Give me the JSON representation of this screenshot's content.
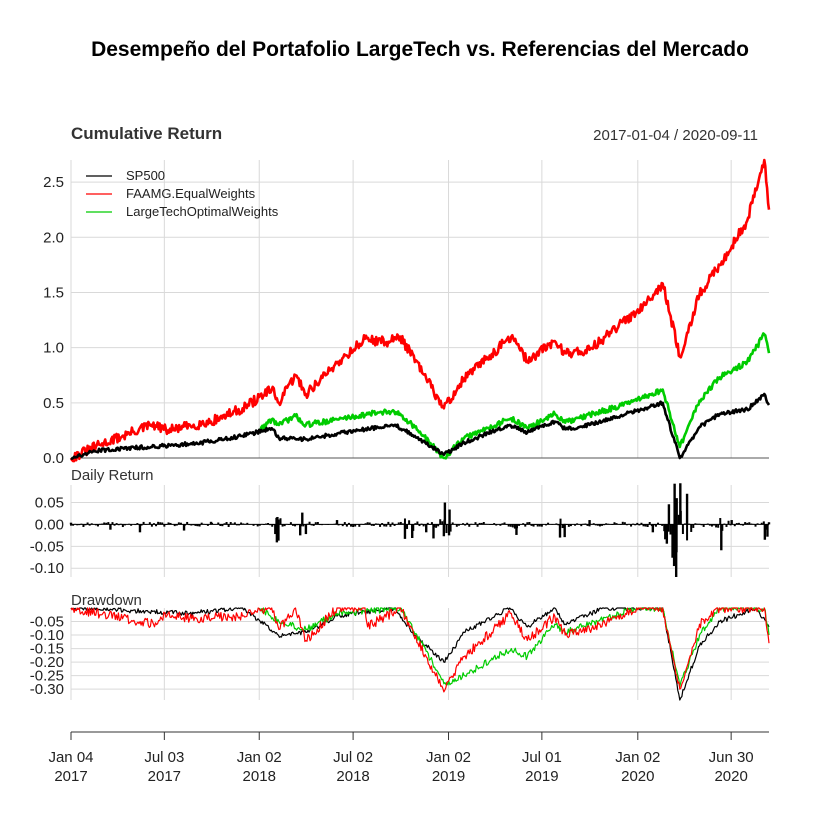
{
  "chart_data": {
    "type": "line",
    "title": "Desempeño del Portafolio LargeTech vs. Referencias del Mercado",
    "date_range": "2017-01-04 / 2020-09-11",
    "colors": {
      "SP500": "#000000",
      "FAAMG.EqualWeights": "#ff0000",
      "LargeTechOptimalWeights": "#00cc00"
    },
    "x_axis": {
      "tick_labels": [
        {
          "date": "2017-01-04",
          "line1": "Jan 04",
          "line2": "2017"
        },
        {
          "date": "2017-07-03",
          "line1": "Jul 03",
          "line2": "2017"
        },
        {
          "date": "2018-01-02",
          "line1": "Jan 02",
          "line2": "2018"
        },
        {
          "date": "2018-07-02",
          "line1": "Jul 02",
          "line2": "2018"
        },
        {
          "date": "2019-01-02",
          "line1": "Jan 02",
          "line2": "2019"
        },
        {
          "date": "2019-07-01",
          "line1": "Jul 01",
          "line2": "2019"
        },
        {
          "date": "2020-01-02",
          "line1": "Jan 02",
          "line2": "2020"
        },
        {
          "date": "2020-06-30",
          "line1": "Jun 30",
          "line2": "2020"
        }
      ],
      "range": [
        "2017-01-04",
        "2020-09-11"
      ]
    },
    "panels": [
      {
        "title": "Cumulative Return",
        "ylim": [
          0,
          2.7
        ],
        "yticks": [
          "0.0",
          "0.5",
          "1.0",
          "1.5",
          "2.0",
          "2.5"
        ],
        "legend_position": "top-left",
        "series": [
          {
            "name": "SP500",
            "points": [
              [
                "2017-01-04",
                0.0
              ],
              [
                "2017-03-01",
                0.07
              ],
              [
                "2017-06-01",
                0.1
              ],
              [
                "2017-09-01",
                0.13
              ],
              [
                "2017-12-01",
                0.2
              ],
              [
                "2018-01-26",
                0.27
              ],
              [
                "2018-02-09",
                0.18
              ],
              [
                "2018-04-02",
                0.17
              ],
              [
                "2018-06-01",
                0.22
              ],
              [
                "2018-09-20",
                0.3
              ],
              [
                "2018-10-29",
                0.2
              ],
              [
                "2018-12-24",
                0.03
              ],
              [
                "2019-02-01",
                0.14
              ],
              [
                "2019-04-30",
                0.3
              ],
              [
                "2019-06-03",
                0.23
              ],
              [
                "2019-07-26",
                0.33
              ],
              [
                "2019-08-15",
                0.26
              ],
              [
                "2019-10-01",
                0.3
              ],
              [
                "2019-12-31",
                0.43
              ],
              [
                "2020-02-19",
                0.5
              ],
              [
                "2020-03-23",
                0.0
              ],
              [
                "2020-04-30",
                0.28
              ],
              [
                "2020-06-08",
                0.4
              ],
              [
                "2020-07-31",
                0.44
              ],
              [
                "2020-09-02",
                0.58
              ],
              [
                "2020-09-11",
                0.48
              ]
            ]
          },
          {
            "name": "FAAMG.EqualWeights",
            "points": [
              [
                "2017-01-04",
                0.0
              ],
              [
                "2017-03-01",
                0.12
              ],
              [
                "2017-06-08",
                0.3
              ],
              [
                "2017-07-10",
                0.25
              ],
              [
                "2017-10-01",
                0.33
              ],
              [
                "2017-12-01",
                0.45
              ],
              [
                "2018-01-26",
                0.62
              ],
              [
                "2018-02-09",
                0.5
              ],
              [
                "2018-03-13",
                0.75
              ],
              [
                "2018-04-02",
                0.58
              ],
              [
                "2018-06-01",
                0.86
              ],
              [
                "2018-07-25",
                1.08
              ],
              [
                "2018-09-04",
                1.05
              ],
              [
                "2018-10-01",
                1.1
              ],
              [
                "2018-11-20",
                0.72
              ],
              [
                "2018-12-24",
                0.45
              ],
              [
                "2019-02-01",
                0.72
              ],
              [
                "2019-05-03",
                1.1
              ],
              [
                "2019-06-03",
                0.88
              ],
              [
                "2019-07-26",
                1.06
              ],
              [
                "2019-08-15",
                0.95
              ],
              [
                "2019-10-01",
                0.98
              ],
              [
                "2019-12-31",
                1.33
              ],
              [
                "2020-02-19",
                1.58
              ],
              [
                "2020-03-23",
                0.92
              ],
              [
                "2020-04-30",
                1.48
              ],
              [
                "2020-06-08",
                1.75
              ],
              [
                "2020-07-31",
                2.15
              ],
              [
                "2020-09-02",
                2.7
              ],
              [
                "2020-09-11",
                2.25
              ]
            ]
          },
          {
            "name": "LargeTechOptimalWeights",
            "points": [
              [
                "2018-01-02",
                0.25
              ],
              [
                "2018-01-26",
                0.35
              ],
              [
                "2018-02-09",
                0.3
              ],
              [
                "2018-03-13",
                0.38
              ],
              [
                "2018-04-02",
                0.3
              ],
              [
                "2018-06-01",
                0.35
              ],
              [
                "2018-08-30",
                0.42
              ],
              [
                "2018-10-01",
                0.4
              ],
              [
                "2018-10-29",
                0.28
              ],
              [
                "2018-12-24",
                0.0
              ],
              [
                "2019-02-01",
                0.18
              ],
              [
                "2019-05-03",
                0.36
              ],
              [
                "2019-06-03",
                0.27
              ],
              [
                "2019-07-26",
                0.4
              ],
              [
                "2019-08-15",
                0.32
              ],
              [
                "2019-12-31",
                0.52
              ],
              [
                "2020-02-19",
                0.62
              ],
              [
                "2020-03-23",
                0.1
              ],
              [
                "2020-04-30",
                0.52
              ],
              [
                "2020-06-08",
                0.73
              ],
              [
                "2020-07-31",
                0.87
              ],
              [
                "2020-09-02",
                1.12
              ],
              [
                "2020-09-11",
                0.95
              ]
            ]
          }
        ]
      },
      {
        "title": "Daily Return",
        "ylim": [
          -0.12,
          0.09
        ],
        "yticks": [
          "0.05",
          "0.00",
          "-0.05",
          "-0.10"
        ],
        "series_name": "SP500",
        "points": [
          [
            "2017-01-04",
            0.004
          ],
          [
            "2017-03-21",
            -0.012
          ],
          [
            "2017-05-17",
            -0.018
          ],
          [
            "2017-08-10",
            -0.014
          ],
          [
            "2017-10-01",
            0.006
          ],
          [
            "2018-02-02",
            -0.022
          ],
          [
            "2018-02-05",
            -0.041
          ],
          [
            "2018-02-06",
            0.017
          ],
          [
            "2018-02-08",
            -0.037
          ],
          [
            "2018-03-22",
            -0.025
          ],
          [
            "2018-03-26",
            0.027
          ],
          [
            "2018-04-02",
            -0.022
          ],
          [
            "2018-06-01",
            0.01
          ],
          [
            "2018-10-10",
            -0.033
          ],
          [
            "2018-10-24",
            -0.031
          ],
          [
            "2018-11-20",
            -0.018
          ],
          [
            "2018-12-04",
            -0.032
          ],
          [
            "2018-12-24",
            -0.027
          ],
          [
            "2018-12-26",
            0.05
          ],
          [
            "2019-01-03",
            -0.025
          ],
          [
            "2019-01-04",
            0.034
          ],
          [
            "2019-05-13",
            -0.024
          ],
          [
            "2019-08-05",
            -0.03
          ],
          [
            "2019-08-14",
            -0.029
          ],
          [
            "2019-10-01",
            0.01
          ],
          [
            "2020-01-31",
            -0.018
          ],
          [
            "2020-02-24",
            -0.034
          ],
          [
            "2020-02-27",
            -0.044
          ],
          [
            "2020-03-02",
            0.046
          ],
          [
            "2020-03-09",
            -0.076
          ],
          [
            "2020-03-12",
            -0.095
          ],
          [
            "2020-03-13",
            0.093
          ],
          [
            "2020-03-16",
            -0.12
          ],
          [
            "2020-03-17",
            0.06
          ],
          [
            "2020-03-24",
            0.094
          ],
          [
            "2020-04-06",
            0.07
          ],
          [
            "2020-06-11",
            -0.059
          ],
          [
            "2020-07-01",
            0.01
          ],
          [
            "2020-09-03",
            -0.035
          ],
          [
            "2020-09-08",
            -0.028
          ],
          [
            "2020-09-11",
            0.005
          ]
        ]
      },
      {
        "title": "Drawdown",
        "ylim": [
          -0.34,
          0.0
        ],
        "yticks": [
          "-0.05",
          "-0.10",
          "-0.15",
          "-0.20",
          "-0.25",
          "-0.30"
        ],
        "series": [
          {
            "name": "SP500",
            "points": [
              [
                "2017-01-04",
                0.0
              ],
              [
                "2017-08-21",
                -0.02
              ],
              [
                "2017-12-01",
                0.0
              ],
              [
                "2018-02-08",
                -0.1
              ],
              [
                "2018-04-02",
                -0.09
              ],
              [
                "2018-06-01",
                -0.03
              ],
              [
                "2018-09-20",
                0.0
              ],
              [
                "2018-10-29",
                -0.1
              ],
              [
                "2018-12-24",
                -0.2
              ],
              [
                "2019-02-01",
                -0.09
              ],
              [
                "2019-04-30",
                0.0
              ],
              [
                "2019-06-03",
                -0.07
              ],
              [
                "2019-07-26",
                0.0
              ],
              [
                "2019-08-15",
                -0.06
              ],
              [
                "2019-10-28",
                0.0
              ],
              [
                "2020-02-19",
                0.0
              ],
              [
                "2020-03-23",
                -0.34
              ],
              [
                "2020-04-30",
                -0.14
              ],
              [
                "2020-06-08",
                -0.05
              ],
              [
                "2020-08-18",
                0.0
              ],
              [
                "2020-09-11",
                -0.07
              ]
            ]
          },
          {
            "name": "FAAMG.EqualWeights",
            "points": [
              [
                "2017-01-04",
                0.0
              ],
              [
                "2017-06-12",
                -0.06
              ],
              [
                "2017-07-10",
                -0.02
              ],
              [
                "2017-08-21",
                -0.04
              ],
              [
                "2017-12-01",
                -0.03
              ],
              [
                "2018-01-26",
                0.0
              ],
              [
                "2018-02-09",
                -0.08
              ],
              [
                "2018-03-13",
                0.0
              ],
              [
                "2018-04-02",
                -0.12
              ],
              [
                "2018-06-01",
                0.0
              ],
              [
                "2018-07-25",
                0.0
              ],
              [
                "2018-07-30",
                -0.07
              ],
              [
                "2018-10-01",
                0.0
              ],
              [
                "2018-11-20",
                -0.18
              ],
              [
                "2018-12-24",
                -0.31
              ],
              [
                "2019-02-01",
                -0.18
              ],
              [
                "2019-05-03",
                -0.02
              ],
              [
                "2019-06-03",
                -0.12
              ],
              [
                "2019-07-26",
                -0.03
              ],
              [
                "2019-08-15",
                -0.1
              ],
              [
                "2019-10-01",
                -0.08
              ],
              [
                "2019-12-31",
                0.0
              ],
              [
                "2020-02-19",
                0.0
              ],
              [
                "2020-03-23",
                -0.3
              ],
              [
                "2020-04-30",
                -0.06
              ],
              [
                "2020-06-08",
                0.0
              ],
              [
                "2020-09-02",
                0.0
              ],
              [
                "2020-09-11",
                -0.13
              ]
            ]
          },
          {
            "name": "LargeTechOptimalWeights",
            "points": [
              [
                "2018-01-02",
                0.0
              ],
              [
                "2018-02-09",
                -0.05
              ],
              [
                "2018-04-02",
                -0.08
              ],
              [
                "2018-06-01",
                -0.02
              ],
              [
                "2018-10-01",
                0.0
              ],
              [
                "2018-11-20",
                -0.16
              ],
              [
                "2018-12-24",
                -0.28
              ],
              [
                "2019-02-01",
                -0.25
              ],
              [
                "2019-05-03",
                -0.15
              ],
              [
                "2019-06-03",
                -0.18
              ],
              [
                "2019-07-26",
                -0.06
              ],
              [
                "2019-08-15",
                -0.09
              ],
              [
                "2019-12-31",
                0.0
              ],
              [
                "2020-02-19",
                0.0
              ],
              [
                "2020-03-23",
                -0.29
              ],
              [
                "2020-04-30",
                -0.1
              ],
              [
                "2020-06-08",
                0.0
              ],
              [
                "2020-09-02",
                0.0
              ],
              [
                "2020-09-11",
                -0.1
              ]
            ]
          }
        ]
      }
    ]
  }
}
